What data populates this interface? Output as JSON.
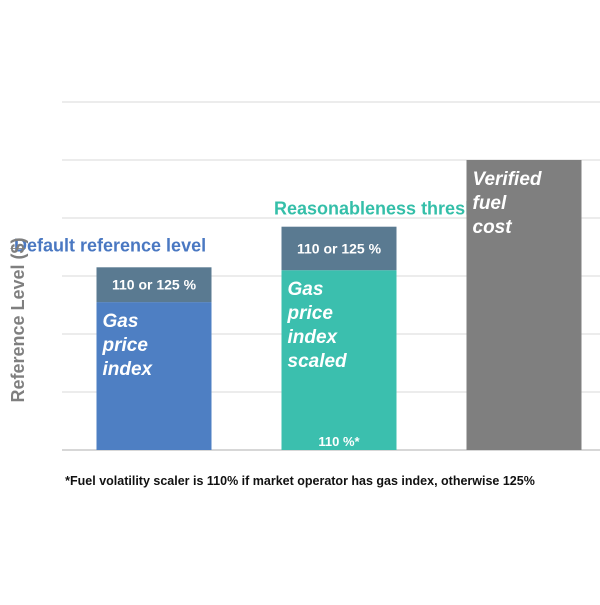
{
  "chart_data": {
    "type": "bar",
    "ylabel": "Reference Level ($)",
    "xlabel": "",
    "grid": true,
    "ylim": [
      0,
      6
    ],
    "gridlines": [
      1,
      2,
      3,
      4,
      5,
      6
    ],
    "bars": [
      {
        "name": "Default reference level",
        "label_color": "#4a78c2",
        "segments": [
          {
            "label": "Gas price index",
            "value": 2.55,
            "color": "#4e7fc3",
            "text_color": "#ffffff",
            "italic": true
          },
          {
            "label": "110 or 125 %",
            "value": 0.6,
            "color": "#5a7a91",
            "text_color": "#ffffff",
            "italic": false
          }
        ]
      },
      {
        "name": "Reasonableness threshold",
        "label_color": "#35bfa9",
        "segments": [
          {
            "label": "Gas price index scaled",
            "value": 3.1,
            "color": "#3bbfae",
            "text_color": "#ffffff",
            "italic": true,
            "sublabel": "110 %*"
          },
          {
            "label": "110 or 125 %",
            "value": 0.75,
            "color": "#5a7a91",
            "text_color": "#ffffff",
            "italic": false
          }
        ]
      },
      {
        "name": "",
        "label_color": "#808080",
        "segments": [
          {
            "label": "Verified fuel cost",
            "value": 5.0,
            "color": "#7f7f7f",
            "text_color": "#ffffff",
            "italic": true
          }
        ]
      }
    ],
    "footnote": "*Fuel volatility scaler is 110% if market operator has gas index, otherwise 125%",
    "colors": {
      "grid": "#d9d9d9",
      "axis": "#bfbfbf",
      "ylabel": "#7f7f7f"
    }
  }
}
